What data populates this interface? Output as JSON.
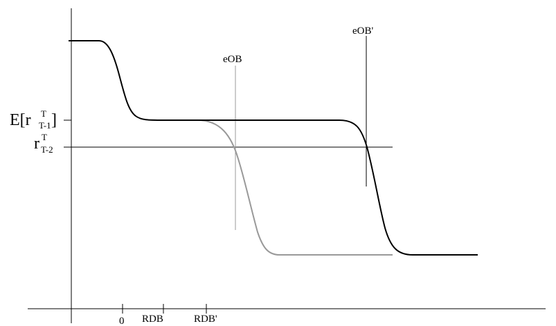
{
  "diagram": {
    "tick_labels": {
      "zero": "0",
      "rdb": "RDB",
      "rdb_prime": "RDB'"
    },
    "vline_labels": {
      "eob": "eOB",
      "eob_prime": "eOB'"
    },
    "y_labels": {
      "expected_rate": {
        "prefix": "E[r",
        "sub": "T-1",
        "sup": "T",
        "suffix": " ]"
      },
      "rate": {
        "base": "r",
        "sub": "T-2",
        "sup": "T"
      }
    },
    "colors": {
      "primary_curve": "#000000",
      "shifted_curve": "#999999",
      "axis": "#000000"
    }
  }
}
